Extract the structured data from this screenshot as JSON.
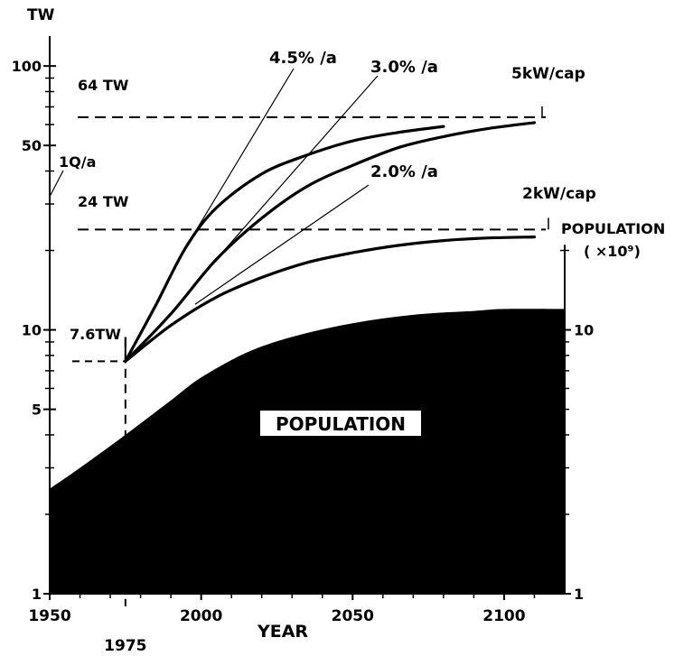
{
  "chart_data": {
    "type": "line",
    "title": "",
    "xlabel": "YEAR",
    "ylabel": "TW",
    "y2label": "POPULATION",
    "y2unit": "( ×10⁹)",
    "yscale": "log",
    "ylim": [
      1,
      120
    ],
    "xlim": [
      1950,
      2120
    ],
    "y2lim": [
      1,
      120
    ],
    "x_ticks": [
      "1950",
      "2000",
      "2050",
      "2100"
    ],
    "x_marker": {
      "year": 1975,
      "label": "1975"
    },
    "y_ticks": [
      "1",
      "5",
      "10",
      "50",
      "100"
    ],
    "y2_ticks": [
      "1",
      "10"
    ],
    "grid": false,
    "series": [
      {
        "name": "4.5% /a",
        "x": [
          1975,
          1985,
          1995,
          2005,
          2020,
          2035,
          2050,
          2065,
          2080
        ],
        "y": [
          7.6,
          12.4,
          20.6,
          29,
          39,
          46,
          52,
          56,
          59
        ]
      },
      {
        "name": "3.0% /a",
        "x": [
          1975,
          1990,
          2005,
          2020,
          2035,
          2050,
          2065,
          2080,
          2095,
          2110
        ],
        "y": [
          7.6,
          11.5,
          18.5,
          26.5,
          35,
          42,
          49,
          54,
          58,
          61
        ]
      },
      {
        "name": "2.0% /a",
        "x": [
          1975,
          1990,
          2005,
          2020,
          2035,
          2050,
          2065,
          2080,
          2095,
          2110
        ],
        "y": [
          7.6,
          10.4,
          13.3,
          15.8,
          18,
          19.6,
          20.9,
          21.8,
          22.3,
          22.5
        ]
      },
      {
        "name": "POPULATION",
        "type": "area",
        "x": [
          1950,
          1960,
          1975,
          1990,
          2000,
          2015,
          2030,
          2050,
          2070,
          2090,
          2100,
          2120
        ],
        "y": [
          2.5,
          3.0,
          4.0,
          5.4,
          6.6,
          8.2,
          9.4,
          10.6,
          11.4,
          11.8,
          12.0,
          12.0
        ]
      }
    ],
    "reference_lines": [
      {
        "label": "64 TW",
        "value": 64,
        "right_label": "5kW/cap"
      },
      {
        "label": "24 TW",
        "value": 24,
        "right_label": "2kW/cap"
      },
      {
        "label": "7.6TW",
        "value": 7.6
      }
    ],
    "annotations": [
      {
        "text": "1Q/a",
        "value": 32
      },
      {
        "text": "POPULATION",
        "kind": "area-label"
      }
    ],
    "colors": {
      "ink": "#000000",
      "background": "#ffffff"
    }
  }
}
